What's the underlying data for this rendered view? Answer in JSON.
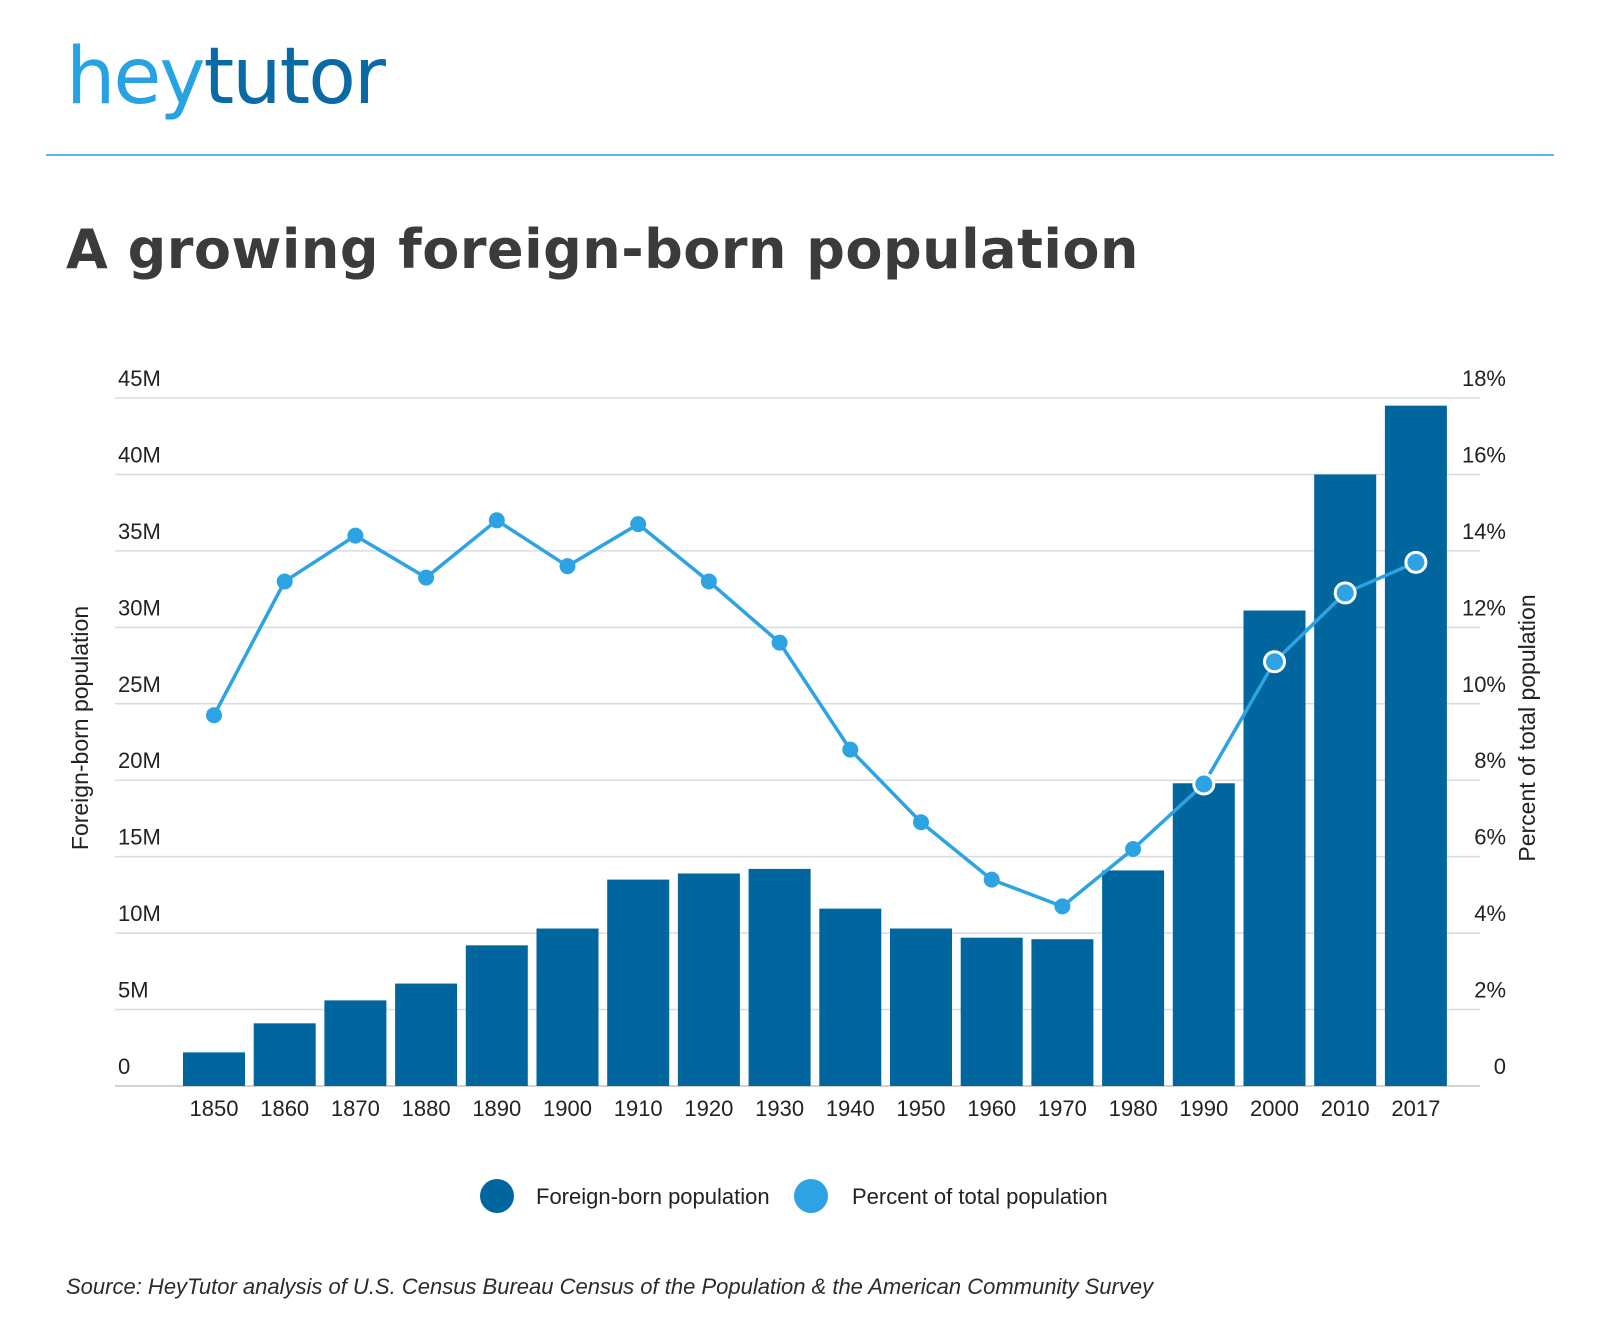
{
  "brand": {
    "logo_part1": "hey",
    "logo_part2": "tutor",
    "color_light": "#27a3e3",
    "color_dark": "#0a6aa6"
  },
  "title": "A growing foreign-born population",
  "source": "Source: HeyTutor analysis of U.S. Census Bureau Census of the Population & the American Community Survey",
  "chart_data": {
    "type": "bar",
    "categories": [
      "1850",
      "1860",
      "1870",
      "1880",
      "1890",
      "1900",
      "1910",
      "1920",
      "1930",
      "1940",
      "1950",
      "1960",
      "1970",
      "1980",
      "1990",
      "2000",
      "2010",
      "2017"
    ],
    "series": [
      {
        "name": "Foreign-born population",
        "type": "bar",
        "axis": "left",
        "color": "#01669e",
        "values": [
          2.2,
          4.1,
          5.6,
          6.7,
          9.2,
          10.3,
          13.5,
          13.9,
          14.2,
          11.6,
          10.3,
          9.7,
          9.6,
          14.1,
          19.8,
          31.1,
          40.0,
          44.5
        ]
      },
      {
        "name": "Percent of total population",
        "type": "line",
        "axis": "right",
        "color": "#2ea3e3",
        "values": [
          9.7,
          13.2,
          14.4,
          13.3,
          14.8,
          13.6,
          14.7,
          13.2,
          11.6,
          8.8,
          6.9,
          5.4,
          4.7,
          6.2,
          7.9,
          11.1,
          12.9,
          13.7
        ]
      }
    ],
    "ylabel_left": "Foreign-born population",
    "ylabel_right": "Percent of total population",
    "ylim_left": [
      0,
      45
    ],
    "ylim_right": [
      0,
      18
    ],
    "yticks_left": [
      "0",
      "5M",
      "10M",
      "15M",
      "20M",
      "25M",
      "30M",
      "35M",
      "40M",
      "45M"
    ],
    "yticks_right": [
      "0",
      "2%",
      "4%",
      "6%",
      "8%",
      "10%",
      "12%",
      "14%",
      "16%",
      "18%"
    ],
    "grid": true,
    "legend_position": "bottom-center"
  }
}
